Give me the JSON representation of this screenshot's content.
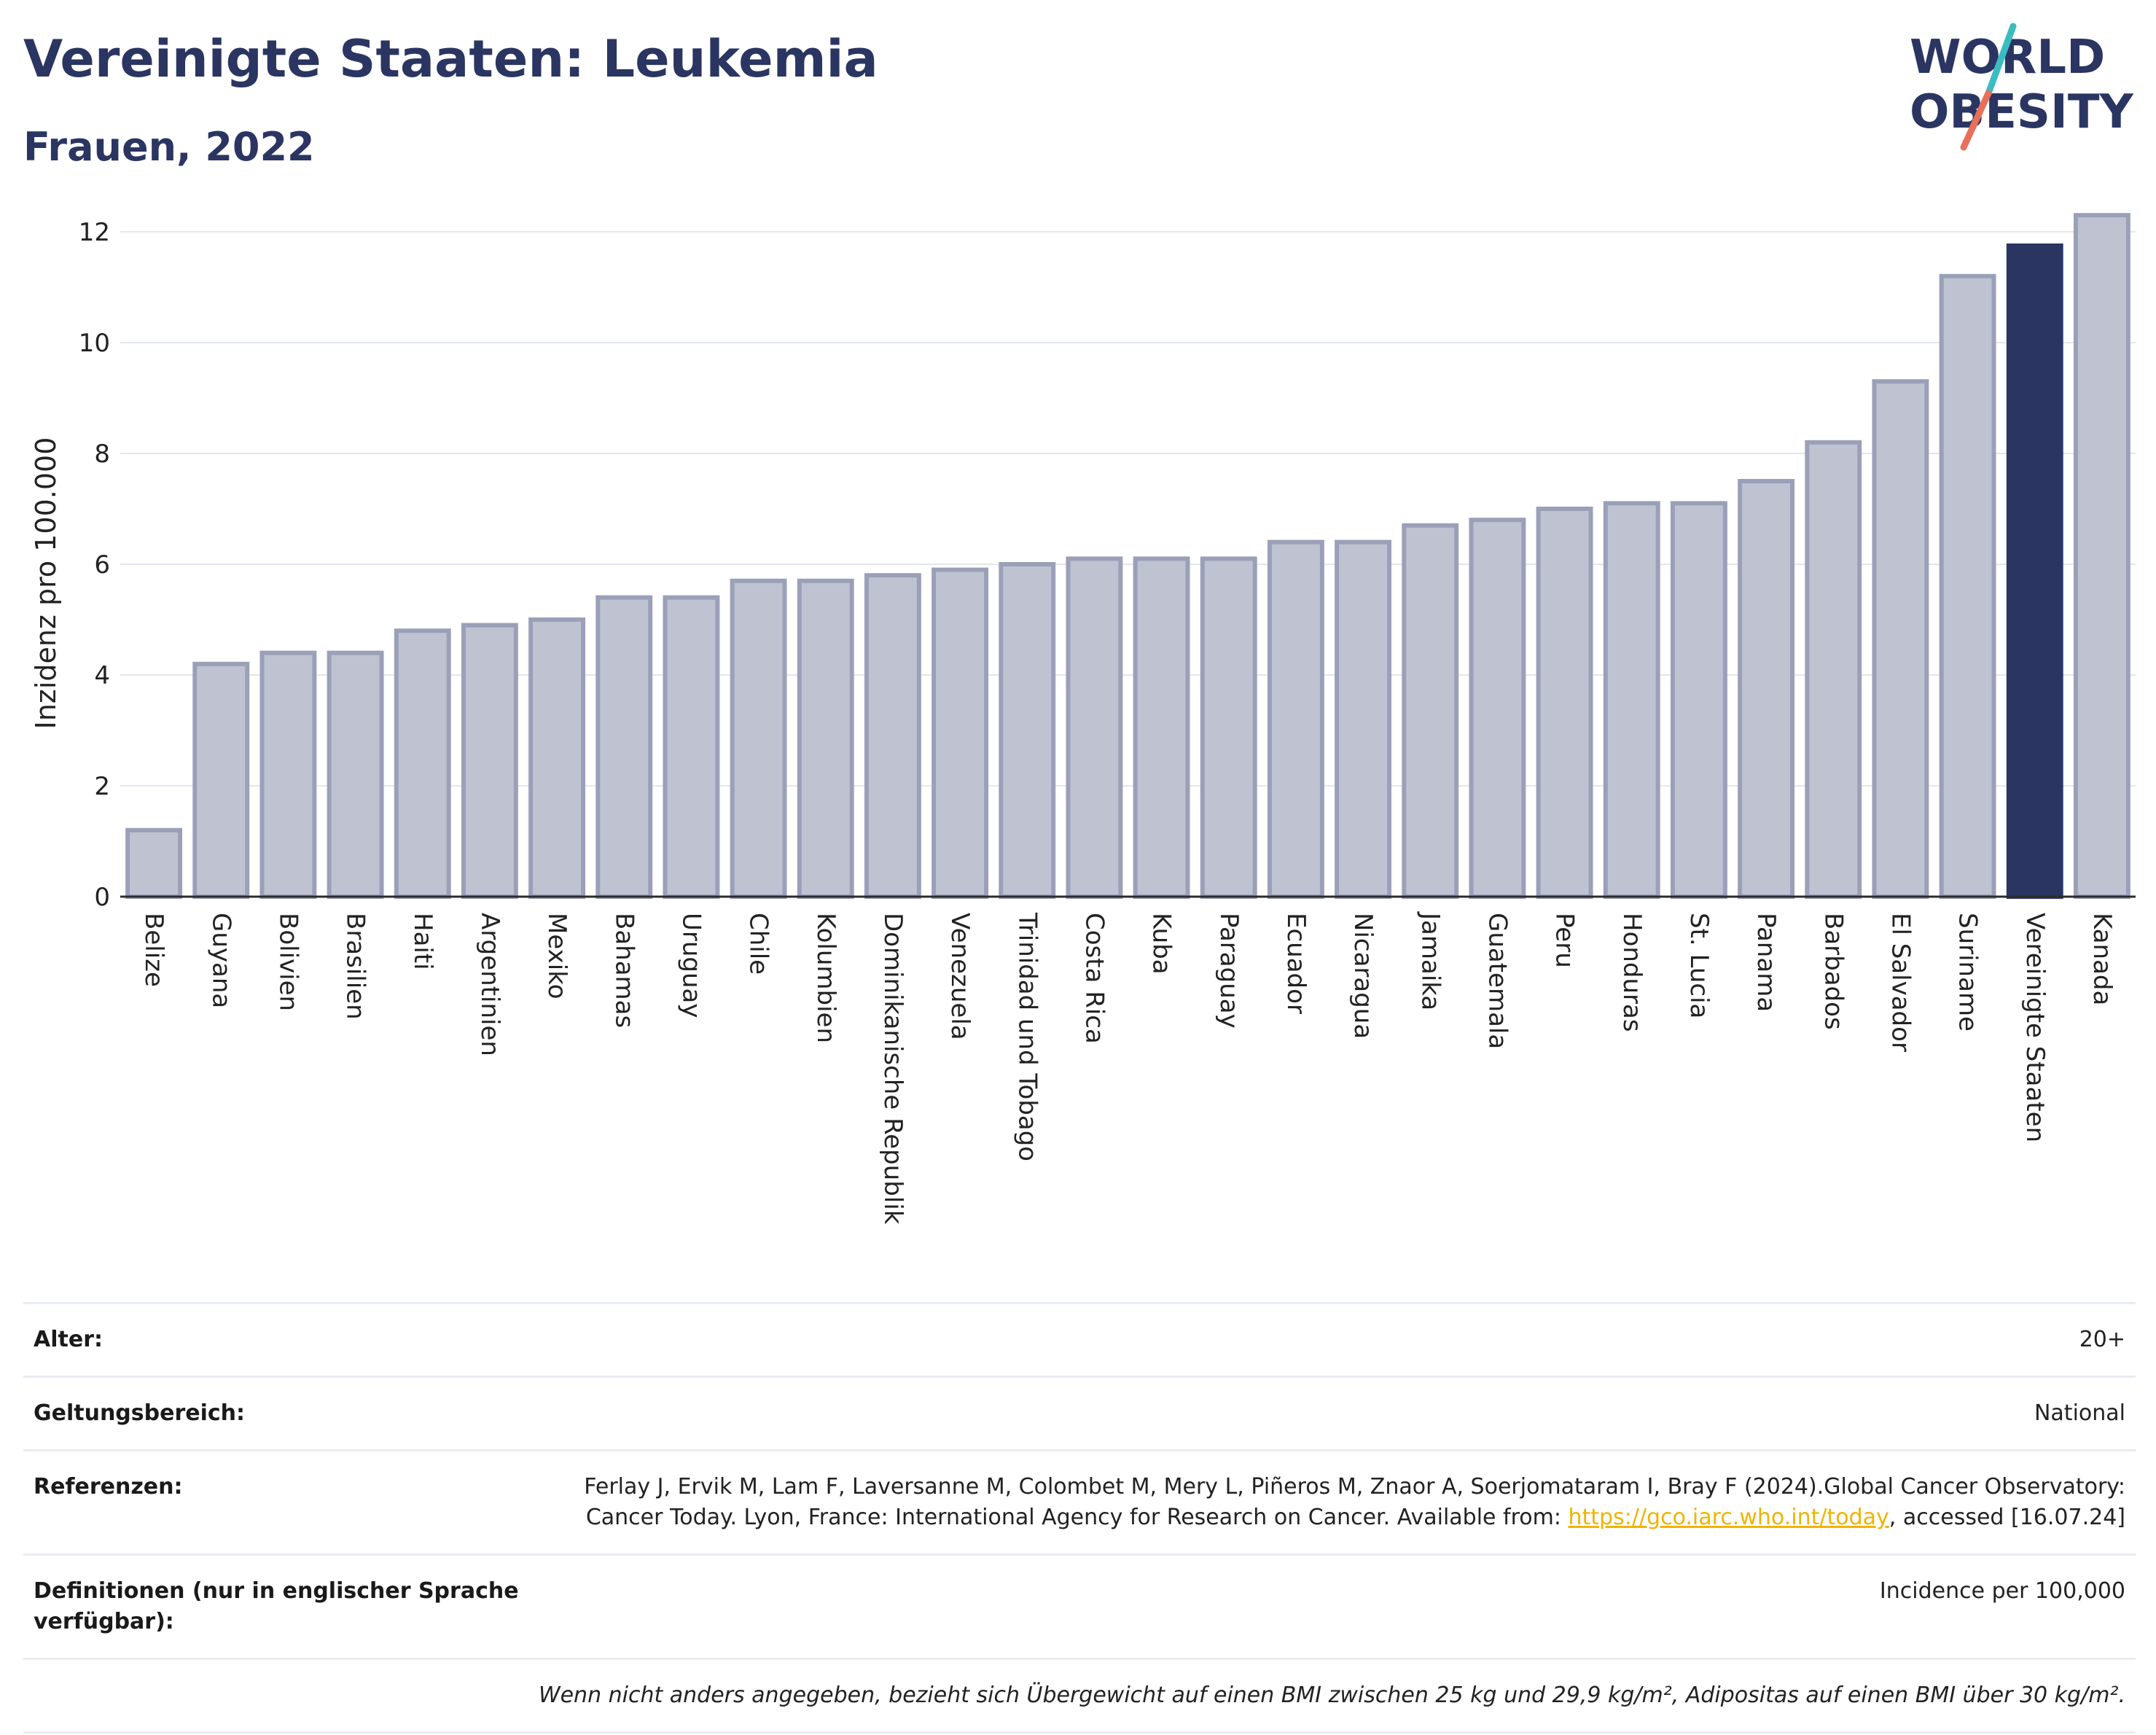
{
  "header": {
    "title": "Vereinigte Staaten: Leukemia",
    "subtitle": "Frauen, 2022"
  },
  "logo": {
    "line1": "WORLD",
    "line2": "OBESITY",
    "accent_teal": "#3bbcc0",
    "accent_coral": "#e8705a",
    "text_color": "#2b3562"
  },
  "chart_data": {
    "type": "bar",
    "ylabel": "Inzidenz pro 100.000",
    "ylim": [
      0,
      12.5
    ],
    "yticks": [
      0,
      2,
      4,
      6,
      8,
      10,
      12
    ],
    "grid": true,
    "highlight": "Vereinigte Staaten",
    "bar_color": "#bfc3d1",
    "bar_edge_color": "#9aa0b8",
    "highlight_color": "#2b3562",
    "categories": [
      "Belize",
      "Guyana",
      "Bolivien",
      "Brasilien",
      "Haiti",
      "Argentinien",
      "Mexiko",
      "Bahamas",
      "Uruguay",
      "Chile",
      "Kolumbien",
      "Dominikanische Republik",
      "Venezuela",
      "Trinidad und Tobago",
      "Costa Rica",
      "Kuba",
      "Paraguay",
      "Ecuador",
      "Nicaragua",
      "Jamaika",
      "Guatemala",
      "Peru",
      "Honduras",
      "St. Lucia",
      "Panama",
      "Barbados",
      "El Salvador",
      "Suriname",
      "Vereinigte Staaten",
      "Kanada"
    ],
    "values": [
      1.2,
      4.2,
      4.4,
      4.4,
      4.8,
      4.9,
      5.0,
      5.4,
      5.4,
      5.7,
      5.7,
      5.8,
      5.9,
      6.0,
      6.1,
      6.1,
      6.1,
      6.4,
      6.4,
      6.7,
      6.8,
      7.0,
      7.1,
      7.1,
      7.5,
      8.2,
      9.3,
      11.2,
      11.75,
      12.3
    ]
  },
  "footer": {
    "age_label": "Alter:",
    "age_value": "20+",
    "scope_label": "Geltungsbereich:",
    "scope_value": "National",
    "refs_label": "Referenzen:",
    "refs_text_1": "Ferlay J, Ervik M, Lam F, Laversanne M, Colombet M, Mery L, Piñeros M, Znaor A, Soerjomataram I, Bray F (2024).Global Cancer Observatory: Cancer Today. Lyon, France: International Agency for Research on Cancer. Available from: ",
    "refs_link": "https://gco.iarc.who.int/today",
    "refs_text_2": ", accessed [16.07.24]",
    "defs_label": "Definitionen (nur in englischer Sprache verfügbar):",
    "defs_value": "Incidence per 100,000",
    "note": "Wenn nicht anders angegeben, bezieht sich Übergewicht auf einen BMI zwischen 25 kg und 29,9 kg/m², Adipositas auf einen BMI über 30 kg/m²."
  }
}
